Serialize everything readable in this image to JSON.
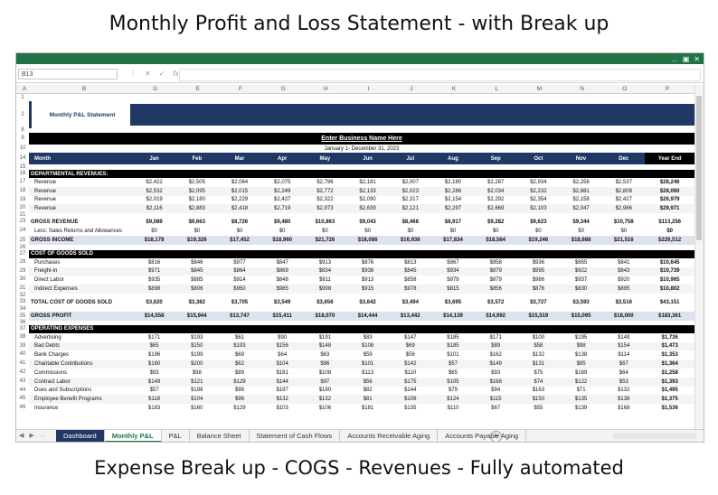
{
  "captions": {
    "top": "Monthly Profit and Loss Statement - with Break up",
    "bottom": "Expense Break up - COGS - Revenues - Fully automated"
  },
  "formula_bar": {
    "name_box": "B13",
    "fx": "fx"
  },
  "window_controls": [
    "…",
    "▣",
    "✕"
  ],
  "columns": [
    "A",
    "B",
    "D",
    "E",
    "F",
    "G",
    "H",
    "I",
    "J",
    "K",
    "L",
    "M",
    "N",
    "O",
    "P"
  ],
  "sheet": {
    "logo_title": "Monthly P&L Statement",
    "business_name": "Enter Business Name Here",
    "period": "January 1- December 31, 2023",
    "month_header": "Month",
    "months": [
      "Jan",
      "Feb",
      "Mar",
      "Apr",
      "May",
      "Jun",
      "Jul",
      "Aug",
      "Sep",
      "Oct",
      "Nov",
      "Dec"
    ],
    "year_end": "Year End"
  },
  "rows": [
    {
      "n": "1",
      "type": "blank",
      "h": 8
    },
    {
      "n": "2",
      "type": "logo",
      "h": 30
    },
    {
      "n": "8",
      "type": "blank",
      "h": 5
    },
    {
      "n": "9",
      "type": "business",
      "h": 13
    },
    {
      "n": "10",
      "type": "period",
      "h": 9
    },
    {
      "n": "14",
      "type": "months",
      "h": 13
    },
    {
      "n": "15",
      "type": "blank",
      "h": 6
    },
    {
      "n": "16",
      "type": "section",
      "label": "DEPARTMENTAL REVENUES:",
      "h": 9
    },
    {
      "n": "17",
      "type": "data",
      "label": "Revenue",
      "v": [
        "$2,422",
        "$2,505",
        "$2,064",
        "$2,075",
        "$2,796",
        "$2,181",
        "$2,007",
        "$2,180",
        "$2,287",
        "$2,934",
        "$2,258",
        "$2,537",
        "$28,246"
      ],
      "h": 9.8
    },
    {
      "n": "18",
      "type": "data",
      "alt": true,
      "label": "Revenue",
      "v": [
        "$2,532",
        "$2,095",
        "$2,015",
        "$2,249",
        "$2,772",
        "$2,133",
        "$2,023",
        "$2,286",
        "$2,034",
        "$2,232",
        "$2,881",
        "$2,808",
        "$28,060"
      ],
      "h": 9.8
    },
    {
      "n": "19",
      "type": "data",
      "label": "Revenue",
      "v": [
        "$2,019",
        "$2,180",
        "$2,229",
        "$2,437",
        "$2,322",
        "$2,090",
        "$2,317",
        "$2,154",
        "$2,292",
        "$2,354",
        "$2,158",
        "$2,427",
        "$26,979"
      ],
      "h": 9.8
    },
    {
      "n": "20",
      "type": "data",
      "alt": true,
      "label": "Revenue",
      "v": [
        "$2,116",
        "$2,883",
        "$2,418",
        "$2,719",
        "$2,973",
        "$2,639",
        "$2,121",
        "$2,297",
        "$2,669",
        "$2,103",
        "$2,047",
        "$2,986",
        "$29,971"
      ],
      "h": 9.8
    },
    {
      "n": "21",
      "type": "blank",
      "h": 5
    },
    {
      "n": "23",
      "type": "data",
      "bold": true,
      "label": "GROSS REVENUE",
      "v": [
        "$9,089",
        "$9,663",
        "$8,726",
        "$9,480",
        "$10,863",
        "$9,043",
        "$8,468",
        "$8,917",
        "$9,282",
        "$9,623",
        "$9,344",
        "$10,758",
        "$113,256"
      ],
      "h": 9.8
    },
    {
      "n": "24",
      "type": "data",
      "label": "Less: Sales Returns and Allowances",
      "v": [
        "$0",
        "$0",
        "$0",
        "$0",
        "$0",
        "$0",
        "$0",
        "$0",
        "$0",
        "$0",
        "$0",
        "$0",
        "$0"
      ],
      "h": 9.8
    },
    {
      "n": "25",
      "type": "data",
      "band": true,
      "bold": true,
      "label": "GROSS INCOME",
      "v": [
        "$18,178",
        "$19,326",
        "$17,452",
        "$18,960",
        "$21,726",
        "$18,086",
        "$16,936",
        "$17,834",
        "$18,564",
        "$19,246",
        "$18,688",
        "$21,516",
        "$226,512"
      ],
      "h": 10
    },
    {
      "n": "26",
      "type": "blank",
      "h": 6
    },
    {
      "n": "27",
      "type": "section",
      "label": "COST OF GOODS SOLD",
      "h": 9
    },
    {
      "n": "28",
      "type": "data",
      "label": "Purchases",
      "v": [
        "$816",
        "$846",
        "$977",
        "$847",
        "$913",
        "$876",
        "$813",
        "$967",
        "$958",
        "$936",
        "$855",
        "$841",
        "$10,645"
      ],
      "h": 9.8
    },
    {
      "n": "29",
      "type": "data",
      "alt": true,
      "label": "Freight-in",
      "v": [
        "$971",
        "$845",
        "$864",
        "$869",
        "$834",
        "$938",
        "$845",
        "$934",
        "$879",
        "$995",
        "$922",
        "$843",
        "$10,739"
      ],
      "h": 9.8
    },
    {
      "n": "30",
      "type": "data",
      "label": "Direct Labor",
      "v": [
        "$935",
        "$885",
        "$914",
        "$848",
        "$911",
        "$913",
        "$858",
        "$979",
        "$879",
        "$986",
        "$937",
        "$920",
        "$10,965"
      ],
      "h": 9.8
    },
    {
      "n": "31",
      "type": "data",
      "alt": true,
      "label": "Indirect Expenses",
      "v": [
        "$898",
        "$806",
        "$950",
        "$985",
        "$998",
        "$915",
        "$978",
        "$815",
        "$856",
        "$876",
        "$830",
        "$895",
        "$10,802"
      ],
      "h": 9.8
    },
    {
      "n": "32",
      "type": "blank",
      "h": 5
    },
    {
      "n": "33",
      "type": "data",
      "bold": true,
      "label": "TOTAL COST OF GOODS SOLD",
      "v": [
        "$3,620",
        "$3,382",
        "$3,705",
        "$3,549",
        "$3,656",
        "$3,642",
        "$3,494",
        "$3,695",
        "$3,572",
        "$3,727",
        "$3,593",
        "$3,516",
        "$43,151"
      ],
      "h": 9.8
    },
    {
      "n": "34",
      "type": "blank",
      "h": 5
    },
    {
      "n": "35",
      "type": "data",
      "band": true,
      "bold": true,
      "label": "GROSS PROFIT",
      "v": [
        "$14,558",
        "$15,944",
        "$13,747",
        "$15,411",
        "$18,070",
        "$14,444",
        "$13,442",
        "$14,139",
        "$14,992",
        "$15,519",
        "$15,095",
        "$18,000",
        "$183,361"
      ],
      "h": 10
    },
    {
      "n": "36",
      "type": "blank",
      "h": 5
    },
    {
      "n": "37",
      "type": "section",
      "label": "OPERATING EXPENSES",
      "h": 9
    },
    {
      "n": "38",
      "type": "data",
      "label": "Advertising",
      "v": [
        "$171",
        "$193",
        "$61",
        "$90",
        "$191",
        "$83",
        "$147",
        "$185",
        "$171",
        "$100",
        "$195",
        "$149",
        "$1,736"
      ],
      "h": 9.8
    },
    {
      "n": "39",
      "type": "data",
      "alt": true,
      "label": "Bad Debts",
      "v": [
        "$65",
        "$150",
        "$193",
        "$156",
        "$148",
        "$108",
        "$69",
        "$185",
        "$89",
        "$58",
        "$98",
        "$154",
        "$1,473"
      ],
      "h": 9.8
    },
    {
      "n": "40",
      "type": "data",
      "label": "Bank Charges",
      "v": [
        "$196",
        "$199",
        "$69",
        "$64",
        "$63",
        "$59",
        "$56",
        "$101",
        "$162",
        "$132",
        "$138",
        "$114",
        "$1,353"
      ],
      "h": 9.8
    },
    {
      "n": "41",
      "type": "data",
      "alt": true,
      "label": "Charitable Contributions",
      "v": [
        "$160",
        "$200",
        "$62",
        "$104",
        "$96",
        "$101",
        "$142",
        "$57",
        "$149",
        "$131",
        "$95",
        "$67",
        "$1,364"
      ],
      "h": 9.8
    },
    {
      "n": "42",
      "type": "data",
      "label": "Commissions",
      "v": [
        "$93",
        "$98",
        "$89",
        "$181",
        "$108",
        "$113",
        "$110",
        "$65",
        "$93",
        "$75",
        "$169",
        "$64",
        "$1,258"
      ],
      "h": 9.8
    },
    {
      "n": "43",
      "type": "data",
      "alt": true,
      "label": "Contract Labor",
      "v": [
        "$149",
        "$121",
        "$129",
        "$144",
        "$97",
        "$56",
        "$175",
        "$105",
        "$168",
        "$74",
        "$122",
        "$53",
        "$1,393"
      ],
      "h": 9.8
    },
    {
      "n": "44",
      "type": "data",
      "label": "Dues and Subscriptions",
      "v": [
        "$57",
        "$198",
        "$98",
        "$197",
        "$180",
        "$82",
        "$144",
        "$79",
        "$94",
        "$163",
        "$71",
        "$132",
        "$1,495"
      ],
      "h": 9.8
    },
    {
      "n": "45",
      "type": "data",
      "alt": true,
      "label": "Employee Benefit Programs",
      "v": [
        "$118",
        "$104",
        "$96",
        "$132",
        "$132",
        "$81",
        "$106",
        "$124",
        "$115",
        "$150",
        "$135",
        "$138",
        "$1,375"
      ],
      "h": 9.8
    },
    {
      "n": "46",
      "type": "data",
      "label": "Insurance",
      "v": [
        "$183",
        "$160",
        "$129",
        "$103",
        "$106",
        "$181",
        "$135",
        "$110",
        "$67",
        "$55",
        "$139",
        "$168",
        "$1,536"
      ],
      "h": 9.8
    }
  ],
  "tabs": [
    "Dashboard",
    "Monthly P&L",
    "P&L",
    "Balance Sheet",
    "Statement of Cash Flows",
    "Accounts Receivable Aging",
    "Accounts Payable Aging"
  ],
  "active_tab": "Monthly P&L",
  "add_sheet": "+",
  "tab_nav": [
    "◀",
    "▶",
    "…"
  ]
}
